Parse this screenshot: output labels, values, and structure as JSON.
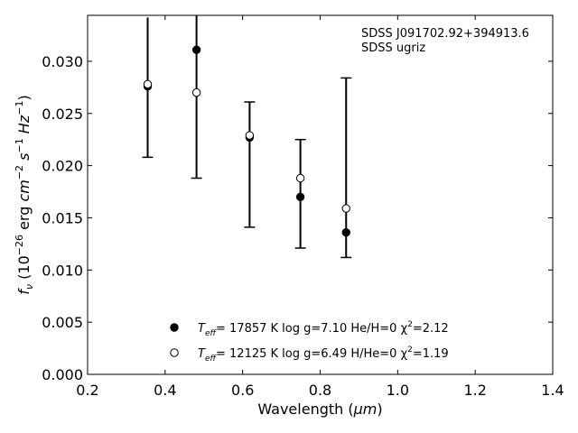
{
  "chart_data": {
    "type": "scatter",
    "xlim": [
      0.2,
      1.4
    ],
    "ylim": [
      0.0,
      0.0344
    ],
    "x_ticks": [
      "0.2",
      "0.4",
      "0.6",
      "0.8",
      "1.0",
      "1.2",
      "1.4"
    ],
    "y_ticks": [
      "0.000",
      "0.005",
      "0.010",
      "0.015",
      "0.020",
      "0.025",
      "0.030"
    ],
    "annotations": [
      "SDSS J091702.92+394913.6",
      "SDSS ugriz"
    ],
    "observed": {
      "x": [
        0.355,
        0.481,
        0.618,
        0.749,
        0.867
      ],
      "y": [
        0.0275,
        0.0305,
        0.0201,
        0.0173,
        0.0198
      ],
      "err": [
        0.0067,
        0.0117,
        0.006,
        0.0052,
        0.0086
      ],
      "err_capped_above": [
        true,
        true,
        false,
        false,
        false
      ]
    },
    "series": [
      {
        "marker": "filled",
        "x": [
          0.355,
          0.481,
          0.618,
          0.749,
          0.867
        ],
        "y": [
          0.0276,
          0.0311,
          0.0227,
          0.017,
          0.0136
        ]
      },
      {
        "marker": "open",
        "x": [
          0.355,
          0.481,
          0.618,
          0.749,
          0.867
        ],
        "y": [
          0.0278,
          0.027,
          0.0229,
          0.0188,
          0.0159
        ]
      }
    ],
    "legend": {
      "placement": "bottom-center",
      "entries": [
        {
          "marker": "filled",
          "teff": "= 17857 K  log g=7.10  He/H=0  χ",
          "chi": "=2.12"
        },
        {
          "marker": "open",
          "teff": "= 12125 K  log g=6.49  H/He=0  χ",
          "chi": "=1.19"
        }
      ]
    },
    "xlabel": {
      "main": "Wavelength (",
      "unit": "μm",
      "close": ")"
    },
    "ylabel": "f_nu (10^-26 erg cm^-2 s^-1 Hz^-1)"
  }
}
